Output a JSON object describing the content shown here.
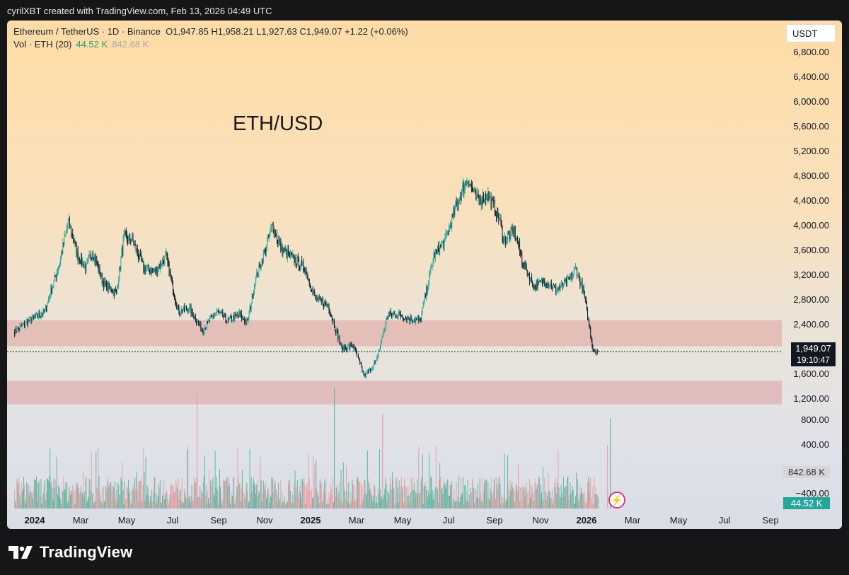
{
  "header": {
    "credit": "cyrilXBT created with TradingView.com, Feb 13, 2026 04:49 UTC"
  },
  "legend": {
    "symbol": "Ethereum / TetherUS · 1D · Binance",
    "ohlc": "O1,947.85  H1,958.21  L1,927.63  C1,949.07  +1.22 (+0.06%)",
    "vol_label": "Vol · ETH (20)",
    "vol_value": "44.52 K",
    "vol_ma": "842.68 K"
  },
  "watermark": "ETH/USD",
  "currency": "USDT",
  "last_price": "1,949.07",
  "countdown": "19:10:47",
  "vol_ma_box": "842.68 K",
  "vol_box": "44.52 K",
  "brand": "TradingView",
  "colors": {
    "up": "#26a69a",
    "down": "#131722",
    "zone": "#dc8c8c",
    "vol_up": "#5fb8a4",
    "vol_down": "#e8a2a8"
  },
  "chart_data": {
    "type": "line",
    "title": "ETH/USD",
    "xlabel": "",
    "ylabel": "",
    "x_ticks": [
      "2024",
      "Mar",
      "May",
      "Jul",
      "Sep",
      "Nov",
      "2025",
      "Mar",
      "May",
      "Jul",
      "Sep",
      "Nov",
      "2026",
      "Mar",
      "May",
      "Jul",
      "Sep"
    ],
    "y_ticks": [
      "6,800.00",
      "6,400.00",
      "6,000.00",
      "5,600.00",
      "5,200.00",
      "4,800.00",
      "4,400.00",
      "4,000.00",
      "3,600.00",
      "3,200.00",
      "2,800.00",
      "2,400.00",
      "1,600.00",
      "1,200.00"
    ],
    "vol_ticks": [
      "800.00",
      "400.00",
      "−400.00"
    ],
    "ylim": [
      1000,
      7000
    ],
    "zones": [
      {
        "low": 2040,
        "high": 2460
      },
      {
        "low": 1100,
        "high": 1480
      }
    ],
    "series": [
      {
        "values_note": "",
        "x": [
          "2024-01-01",
          "2024-01-20",
          "2024-02-10",
          "2024-03-01",
          "2024-03-12",
          "2024-03-25",
          "2024-04-05",
          "2024-04-13",
          "2024-04-28",
          "2024-05-15",
          "2024-05-25",
          "2024-06-05",
          "2024-06-20",
          "2024-07-05",
          "2024-07-20",
          "2024-08-05",
          "2024-08-20",
          "2024-09-06",
          "2024-09-25",
          "2024-10-10",
          "2024-10-25",
          "2024-11-05",
          "2024-11-15",
          "2024-11-28",
          "2024-12-08",
          "2024-12-20",
          "2025-01-05",
          "2025-01-20",
          "2025-02-03",
          "2025-02-20",
          "2025-03-10",
          "2025-03-25",
          "2025-04-09",
          "2025-04-25",
          "2025-05-10",
          "2025-05-25",
          "2025-06-10",
          "2025-06-22",
          "2025-07-10",
          "2025-07-25",
          "2025-08-10",
          "2025-08-24",
          "2025-09-05",
          "2025-09-20",
          "2025-10-05",
          "2025-10-11",
          "2025-10-25",
          "2025-11-05",
          "2025-11-20",
          "2025-12-05",
          "2025-12-20",
          "2026-01-05",
          "2026-01-15",
          "2026-01-25",
          "2026-02-02",
          "2026-02-06",
          "2026-02-13"
        ],
        "values": [
          2280,
          2450,
          2600,
          3400,
          4060,
          3500,
          3300,
          3580,
          3050,
          2900,
          3800,
          3760,
          3300,
          3250,
          3480,
          2600,
          2650,
          2300,
          2600,
          2450,
          2550,
          2420,
          3100,
          3580,
          4000,
          3600,
          3450,
          3300,
          2800,
          2700,
          2000,
          2050,
          1550,
          1800,
          2550,
          2550,
          2480,
          2450,
          3500,
          3750,
          4350,
          4750,
          4400,
          4480,
          4100,
          3750,
          3900,
          3400,
          3000,
          3100,
          2950,
          3100,
          3300,
          2900,
          2300,
          2000,
          1949
        ]
      }
    ]
  }
}
